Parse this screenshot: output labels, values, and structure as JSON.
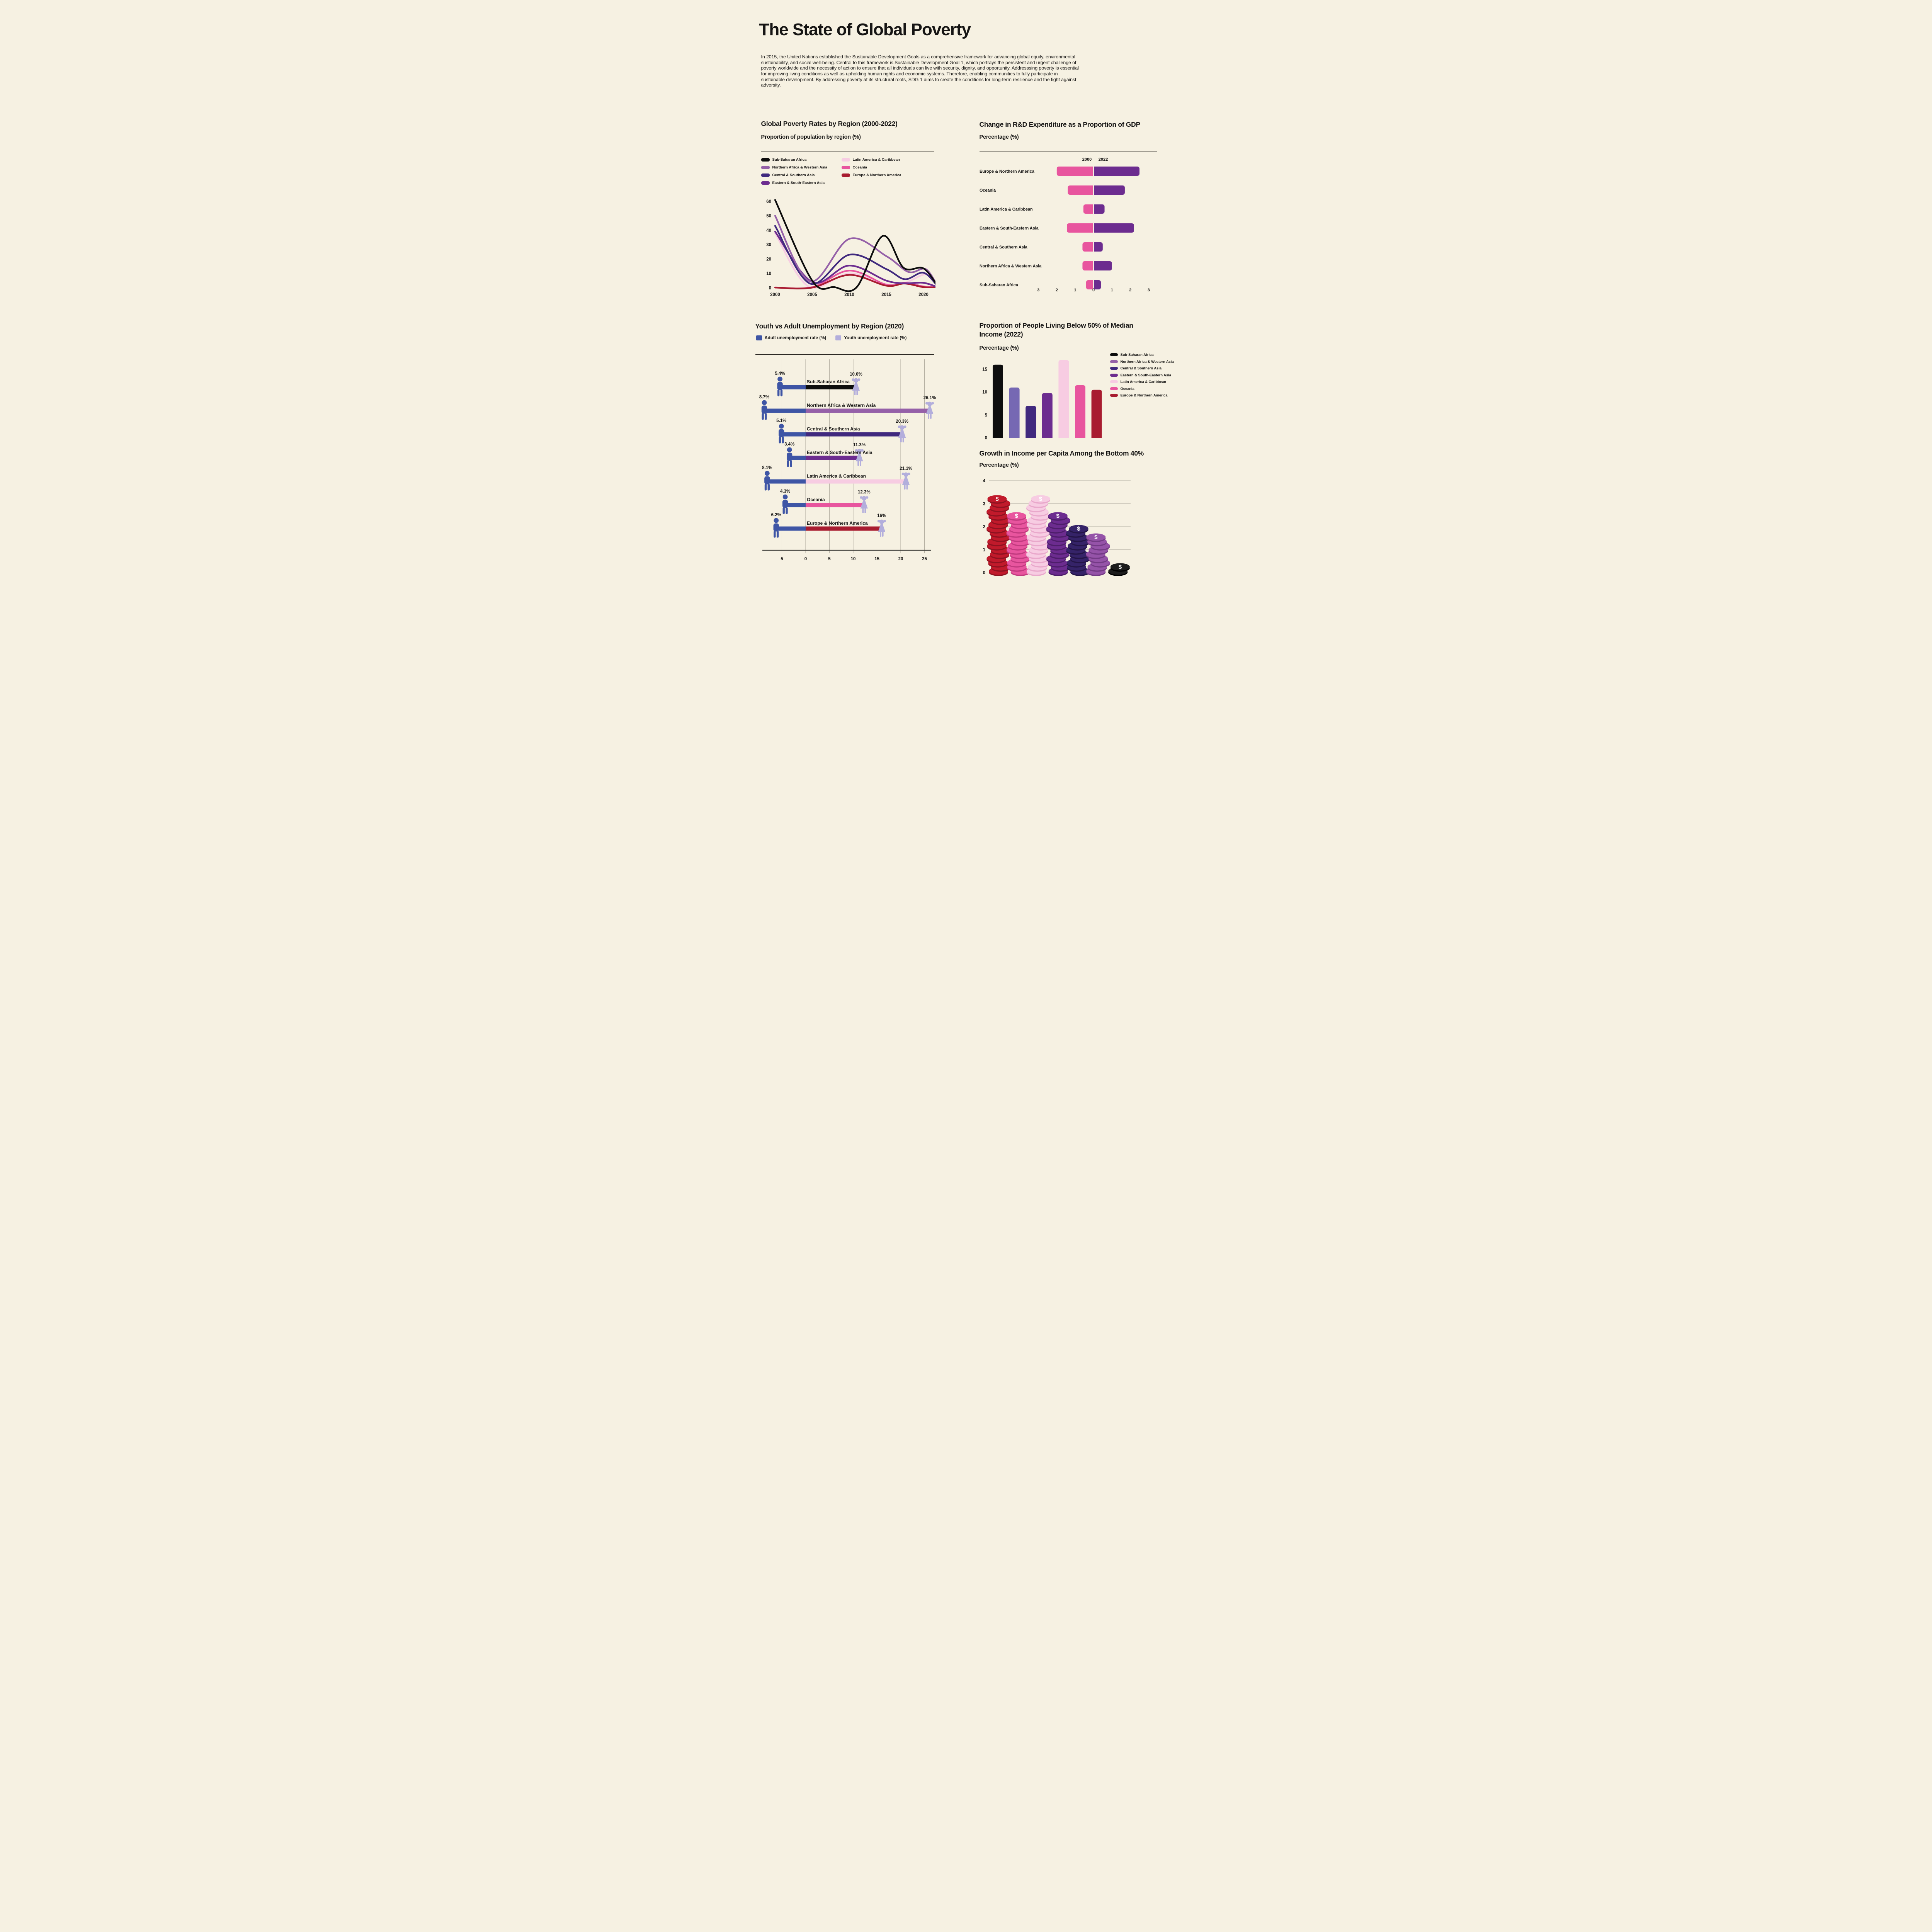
{
  "page": {
    "title": "The State of Global Poverty",
    "intro": "In 2015, the United Nations established the Sustainable Development Goals as a comprehensive framework for advancing global equity, environmental sustainability, and social well-being. Central to this framework is Sustainable Development Goal 1, which portrays the persistent and urgent challenge of poverty worldwide and the necessity of action to ensure that all individuals can live with security, dignity, and opportunity. Addresssing poverty is essential for improving living conditions as well as upholding human rights and economic systems. Therefore, enabling communities to fully participate in sustainable development. By addressing poverty at its structural roots, SDG 1 aims to create the conditions for long-term resilience and the fight against adversity.",
    "background": "#F6F1E2",
    "text_color": "#161514"
  },
  "sections": {
    "poverty": {
      "title": "Global Poverty Rates by Region (2000-2022)",
      "subtitle": "Proportion of population by region (%)",
      "legend": [
        {
          "label": "Sub-Saharan Africa",
          "color": "#0D0D0D"
        },
        {
          "label": "Northern Africa & Western Asia",
          "color": "#9560A8"
        },
        {
          "label": "Central & Southern Asia",
          "color": "#40297E"
        },
        {
          "label": "Eastern & South-Eastern Asia",
          "color": "#6C2C8F"
        },
        {
          "label": "Latin America & Caribbean",
          "color": "#F7CCE2"
        },
        {
          "label": "Oceania",
          "color": "#E8559E"
        },
        {
          "label": "Europe & Northern America",
          "color": "#A81C30"
        }
      ]
    },
    "rnd": {
      "title": "Change in R&D Expenditure as a Proportion of GDP",
      "subtitle": "Percentage (%)"
    },
    "unemployment": {
      "title": "Youth vs Adult Unemployment by Region (2020)",
      "legend": [
        {
          "label": "Adult unemployment rate (%)",
          "color": "#3E55A5"
        },
        {
          "label": "Youth unemployment rate (%)",
          "color": "#B3AEDC"
        }
      ]
    },
    "median": {
      "title": "Proportion of People Living Below 50% of Median Income (2022)",
      "subtitle": "Percentage (%)",
      "legend": [
        {
          "label": "Sub-Saharan Africa",
          "color": "#0D0D0D"
        },
        {
          "label": "Northern Africa & Western Asia",
          "color": "#9560A8"
        },
        {
          "label": "Central & Southern Asia",
          "color": "#40297E"
        },
        {
          "label": "Eastern & South-Eastern Asia",
          "color": "#6C2C8F"
        },
        {
          "label": "Latin America & Caribbean",
          "color": "#F7CCE2"
        },
        {
          "label": "Oceania",
          "color": "#E8559E"
        },
        {
          "label": "Europe & Northern America",
          "color": "#A81C30"
        }
      ]
    },
    "growth": {
      "title": "Growth in Income per Capita Among the Bottom 40%",
      "subtitle": "Percentage (%)"
    }
  },
  "chart_data": [
    {
      "id": "poverty-rates-line",
      "type": "line",
      "title": "Global Poverty Rates by Region (2000-2022)",
      "ylabel": "Proportion of population by region (%)",
      "x_ticks": [
        2000,
        2005,
        2010,
        2015,
        2020
      ],
      "y_ticks": [
        0,
        10,
        20,
        30,
        40,
        50,
        60
      ],
      "xlim": [
        2000,
        2022
      ],
      "ylim": [
        0,
        62
      ],
      "grid": false,
      "legend_position": "top",
      "series": [
        {
          "name": "Latin America & Caribbean",
          "color": "#F7CCE2",
          "points": [
            [
              2000,
              38
            ],
            [
              2004.5,
              1
            ],
            [
              2010,
              10
            ],
            [
              2015,
              2.5
            ],
            [
              2017.5,
              3.5
            ],
            [
              2020.5,
              9.5
            ],
            [
              2022,
              0.3
            ]
          ]
        },
        {
          "name": "Oceania",
          "color": "#E8559E",
          "points": [
            [
              2000,
              0.3
            ],
            [
              2005,
              0.5
            ],
            [
              2010,
              12
            ],
            [
              2015,
              2.2
            ],
            [
              2017.5,
              3.5
            ],
            [
              2020,
              1
            ],
            [
              2022,
              0.3
            ]
          ]
        },
        {
          "name": "Europe & Northern America",
          "color": "#A81C30",
          "points": [
            [
              2000,
              0.2
            ],
            [
              2005,
              0.2
            ],
            [
              2010,
              9
            ],
            [
              2015,
              1.5
            ],
            [
              2017.5,
              3
            ],
            [
              2020,
              0.5
            ],
            [
              2022,
              0.5
            ]
          ]
        },
        {
          "name": "Eastern & South-Eastern Asia",
          "color": "#6C2C8F",
          "points": [
            [
              2000,
              39
            ],
            [
              2005,
              4
            ],
            [
              2010,
              15.5
            ],
            [
              2015,
              5
            ],
            [
              2017.5,
              3.2
            ],
            [
              2020,
              3.5
            ],
            [
              2022,
              0.3
            ]
          ]
        },
        {
          "name": "Central & Southern Asia",
          "color": "#40297E",
          "points": [
            [
              2000,
              43
            ],
            [
              2004.7,
              3
            ],
            [
              2010,
              23
            ],
            [
              2015,
              13
            ],
            [
              2017.5,
              6
            ],
            [
              2020,
              10.5
            ],
            [
              2022,
              0.5
            ]
          ]
        },
        {
          "name": "Northern Africa & Western Asia",
          "color": "#9560A8",
          "points": [
            [
              2000,
              50
            ],
            [
              2004.7,
              4.5
            ],
            [
              2010,
              34
            ],
            [
              2015,
              22
            ],
            [
              2018,
              11
            ],
            [
              2020.3,
              13
            ],
            [
              2022,
              0.3
            ]
          ]
        },
        {
          "name": "Sub-Saharan Africa",
          "color": "#0D0D0D",
          "points": [
            [
              2000,
              61
            ],
            [
              2005,
              5
            ],
            [
              2008,
              0.5
            ],
            [
              2011,
              0.5
            ],
            [
              2014.5,
              36
            ],
            [
              2017.3,
              14
            ],
            [
              2020,
              13.5
            ],
            [
              2022,
              0.5
            ]
          ]
        }
      ]
    },
    {
      "id": "rnd-expenditure",
      "type": "bar",
      "subtype": "diverging-horizontal",
      "title": "Change in R&D Expenditure as a Proportion of GDP",
      "ylabel": "Percentage (%)",
      "categories": [
        "Europe & Northern America",
        "Oceania",
        "Latin America & Caribbean",
        "Eastern & South-Eastern Asia",
        "Central & Southern Asia",
        "Northern Africa & Western Asia",
        "Sub-Saharan Africa"
      ],
      "series": [
        {
          "name": "2000",
          "color": "#E8559E",
          "values": [
            2.0,
            1.4,
            0.55,
            1.45,
            0.6,
            0.6,
            0.4
          ]
        },
        {
          "name": "2022",
          "color": "#6C2C8F",
          "values": [
            2.5,
            1.7,
            0.6,
            2.2,
            0.5,
            1.0,
            0.4
          ]
        }
      ],
      "x_ticks": [
        "3",
        "2",
        "1",
        "0",
        "1",
        "2",
        "3"
      ],
      "x_tick_values": [
        -3,
        -2,
        -1,
        0,
        1,
        2,
        3
      ],
      "xlim": [
        -3,
        3
      ]
    },
    {
      "id": "unemployment-dumbbell",
      "type": "bar",
      "subtype": "dumbbell-pictogram",
      "title": "Youth vs Adult Unemployment by Region (2020)",
      "categories": [
        "Sub-Saharan Africa",
        "Northern Africa & Western Asia",
        "Central & Southern Asia",
        "Eastern & South-Eastern Asia",
        "Latin America & Caribbean",
        "Oceania",
        "Europe & Northern America"
      ],
      "series": [
        {
          "name": "Adult unemployment rate (%)",
          "color": "#3E55A5",
          "values": [
            5.4,
            8.7,
            5.1,
            3.4,
            8.1,
            4.3,
            6.2
          ]
        },
        {
          "name": "Youth unemployment rate (%)",
          "color": "#B3AEDC",
          "values": [
            10.6,
            26.1,
            20.3,
            11.3,
            21.1,
            12.3,
            16
          ]
        }
      ],
      "value_labels": {
        "adult": [
          "5.4%",
          "8.7%",
          "5.1%",
          "3.4%",
          "8.1%",
          "4.3%",
          "6.2%"
        ],
        "youth": [
          "10.6%",
          "26.1%",
          "20.3%",
          "11.3%",
          "21.1%",
          "12.3%",
          "16%"
        ]
      },
      "connector_colors": [
        "#0D0D0D",
        "#9560A8",
        "#40297E",
        "#6C2C8F",
        "#F7CCE2",
        "#E8559E",
        "#A81C30"
      ],
      "x_ticks": [
        "5",
        "0",
        "5",
        "10",
        "15",
        "20",
        "25"
      ],
      "x_tick_values": [
        -5,
        0,
        5,
        10,
        15,
        20,
        25
      ]
    },
    {
      "id": "below-median-income",
      "type": "bar",
      "title": "Proportion of People Living Below 50% of Median Income (2022)",
      "ylabel": "Percentage (%)",
      "categories": [
        "Sub-Saharan Africa",
        "Northern Africa & Western Asia",
        "Central & Southern Asia",
        "Eastern & South-Eastern Asia",
        "Latin America & Caribbean",
        "Oceania",
        "Europe & Northern America"
      ],
      "values": [
        16,
        11,
        7,
        9.8,
        17,
        11.5,
        10.5
      ],
      "colors": [
        "#0D0D0D",
        "#7668B3",
        "#40297E",
        "#6C2C8F",
        "#F7CCE2",
        "#E8559E",
        "#A81C30"
      ],
      "y_ticks": [
        0,
        5,
        10,
        15
      ],
      "ylim": [
        0,
        18.5
      ],
      "legend_position": "right"
    },
    {
      "id": "income-growth-coins",
      "type": "bar",
      "subtype": "coin-stack",
      "title": "Growth in Income per Capita Among the Bottom 40%",
      "ylabel": "Percentage (%)",
      "categories": [
        "Europe & Northern America",
        "Oceania",
        "Latin America & Caribbean",
        "Eastern & South-Eastern Asia",
        "Central & Southern Asia",
        "Northern Africa & Western Asia",
        "Sub-Saharan Africa"
      ],
      "values": [
        3.4,
        2.6,
        3.3,
        2.5,
        2.05,
        1.7,
        0.35
      ],
      "colors": [
        "#C11A2B",
        "#E8559E",
        "#F7CCE2",
        "#6C2C8F",
        "#352368",
        "#9553A8",
        "#1C1C1C"
      ],
      "edge_colors": [
        "#8E1220",
        "#C23A7F",
        "#E9A8CB",
        "#4E1E6B",
        "#241547",
        "#733A85",
        "#000000"
      ],
      "y_ticks": [
        0,
        1,
        2,
        3,
        4
      ],
      "ylim": [
        0,
        4
      ],
      "grid": true
    }
  ]
}
